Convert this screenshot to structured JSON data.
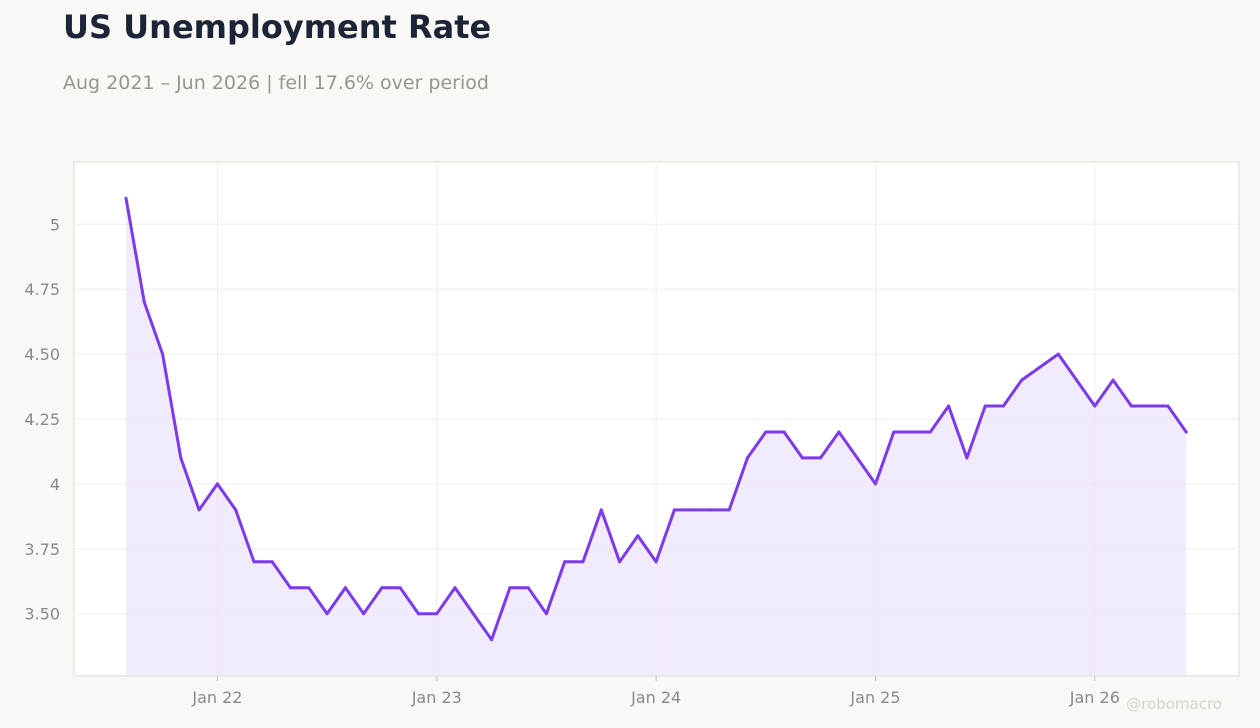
{
  "header": {
    "title": "US Unemployment Rate",
    "subtitle": "Aug 2021 – Jun 2026 | fell 17.6% over period"
  },
  "watermark": "@robomacro",
  "colors": {
    "line": "#7c3aed",
    "area": "#ede4fc",
    "title": "#1c2538",
    "muted": "#98958f",
    "background": "#f9f8f5",
    "plot_background": "#ffffff"
  },
  "chart_data": {
    "type": "area",
    "title": "US Unemployment Rate",
    "subtitle": "Aug 2021 – Jun 2026 | fell 17.6% over period",
    "xlabel": "",
    "ylabel": "",
    "grid": true,
    "x_start": "2021-08",
    "x_end": "2026-06",
    "x_frequency": "monthly",
    "ylim": [
      3.26,
      5.24
    ],
    "y_ticks": [
      {
        "value": 3.5,
        "label": "3.50"
      },
      {
        "value": 3.75,
        "label": "3.75"
      },
      {
        "value": 4.0,
        "label": "4"
      },
      {
        "value": 4.25,
        "label": "4.25"
      },
      {
        "value": 4.5,
        "label": "4.50"
      },
      {
        "value": 4.75,
        "label": "4.75"
      },
      {
        "value": 5.0,
        "label": "5"
      }
    ],
    "x_ticks": [
      {
        "date": "2022-01",
        "label": "Jan 22"
      },
      {
        "date": "2023-01",
        "label": "Jan 23"
      },
      {
        "date": "2024-01",
        "label": "Jan 24"
      },
      {
        "date": "2025-01",
        "label": "Jan 25"
      },
      {
        "date": "2026-01",
        "label": "Jan 26"
      }
    ],
    "series": [
      {
        "values": [
          5.1,
          4.7,
          4.5,
          4.1,
          3.9,
          4.0,
          3.9,
          3.7,
          3.7,
          3.6,
          3.6,
          3.5,
          3.6,
          3.5,
          3.6,
          3.6,
          3.5,
          3.5,
          3.6,
          3.5,
          3.4,
          3.6,
          3.6,
          3.5,
          3.7,
          3.7,
          3.9,
          3.7,
          3.8,
          3.7,
          3.9,
          3.9,
          3.9,
          3.9,
          4.1,
          4.2,
          4.2,
          4.1,
          4.1,
          4.2,
          4.1,
          4.0,
          4.2,
          4.2,
          4.2,
          4.3,
          4.1,
          4.3,
          4.3,
          4.4,
          4.45,
          4.5,
          4.4,
          4.3,
          4.4,
          4.3,
          4.3,
          4.3,
          4.2
        ]
      }
    ]
  }
}
